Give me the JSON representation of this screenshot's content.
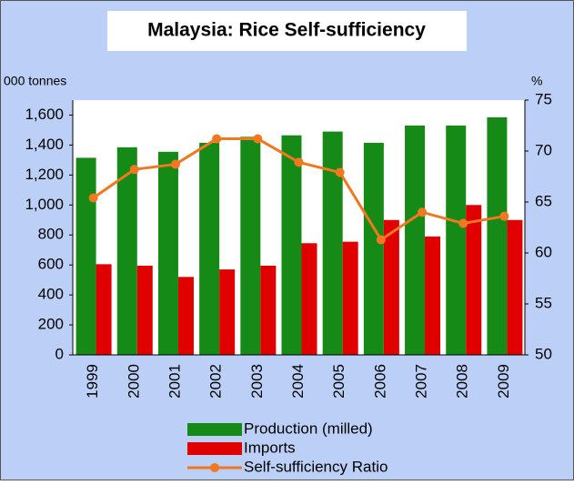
{
  "chart_data": {
    "type": "bar",
    "title": "Malaysia: Rice Self-sufficiency",
    "y_label": "000 tonnes",
    "y2_label": "%",
    "categories": [
      "1999",
      "2000",
      "2001",
      "2002",
      "2003",
      "2004",
      "2005",
      "2006",
      "2007",
      "2008",
      "2009"
    ],
    "series": [
      {
        "name": "Production (milled)",
        "type": "bar",
        "color": "#168a16",
        "values": [
          1315,
          1385,
          1355,
          1415,
          1455,
          1465,
          1490,
          1415,
          1530,
          1530,
          1585
        ]
      },
      {
        "name": "Imports",
        "type": "bar",
        "color": "#e00000",
        "values": [
          605,
          595,
          520,
          570,
          595,
          745,
          755,
          900,
          790,
          1000,
          900
        ]
      },
      {
        "name": "Self-sufficiency Ratio",
        "type": "line",
        "axis": "y2",
        "color": "#f07820",
        "values": [
          65.4,
          68.2,
          68.7,
          71.2,
          71.2,
          68.9,
          67.9,
          61.3,
          64.0,
          62.9,
          63.6
        ]
      }
    ],
    "ylim": [
      0,
      1700
    ],
    "yticks": [
      0,
      200,
      400,
      600,
      800,
      {
        "value": 1000,
        "label": "1,000"
      },
      {
        "value": 1200,
        "label": "1,200"
      },
      {
        "value": 1400,
        "label": "1,400"
      },
      {
        "value": 1600,
        "label": "1,600"
      }
    ],
    "y2lim": [
      50,
      75
    ],
    "y2ticks": [
      50,
      55,
      60,
      65,
      70,
      75
    ],
    "grid": false,
    "legend": "bottom"
  }
}
